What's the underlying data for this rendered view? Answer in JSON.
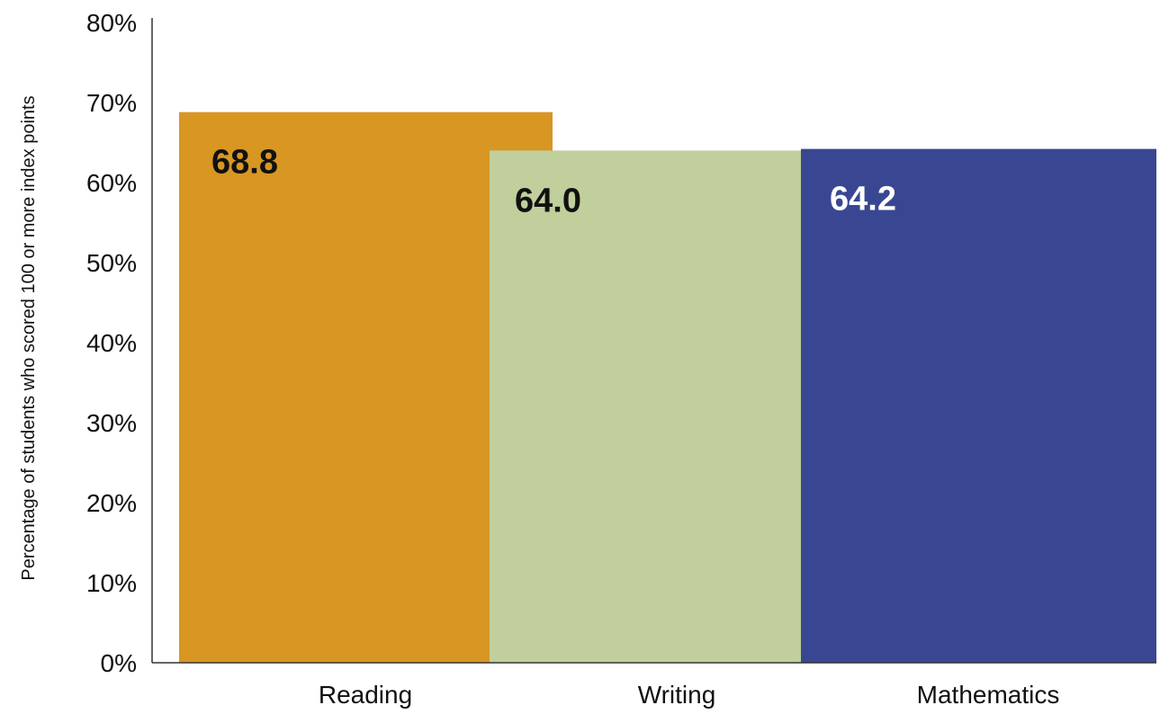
{
  "chart_data": {
    "type": "bar",
    "title": "",
    "xlabel": "",
    "ylabel": "Percentage of students who scored 100 or more index points",
    "categories": [
      "Reading",
      "Writing",
      "Mathematics"
    ],
    "values": [
      68.8,
      64.0,
      64.2
    ],
    "value_labels": [
      "68.8",
      "64.0",
      "64.2"
    ],
    "bar_colors": [
      "#d89623",
      "#c0cf9c",
      "#394792"
    ],
    "value_label_colors": [
      "#111111",
      "#111111",
      "#ffffff"
    ],
    "ylim": [
      0,
      80
    ],
    "yticks": [
      0,
      10,
      20,
      30,
      40,
      50,
      60,
      70,
      80
    ],
    "ytick_labels": [
      "0%",
      "10%",
      "20%",
      "30%",
      "40%",
      "50%",
      "60%",
      "70%",
      "80%"
    ],
    "grid": false,
    "legend": "none"
  }
}
